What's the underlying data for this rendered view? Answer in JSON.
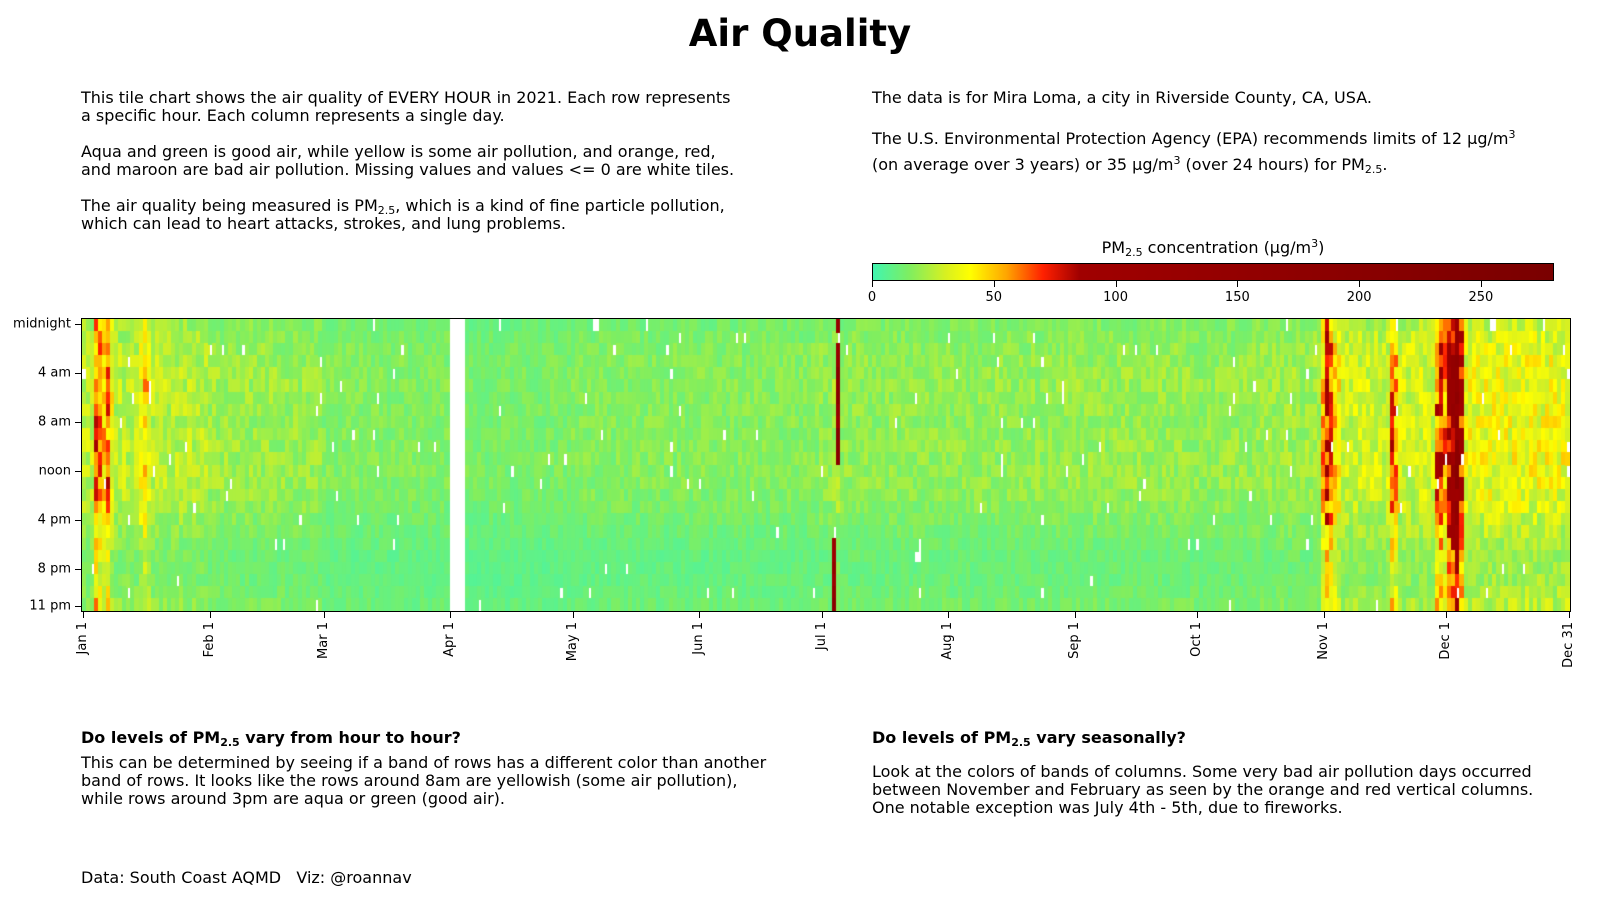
{
  "title": "Air Quality",
  "intro": {
    "p1_line1": "This tile chart shows the air quality of EVERY HOUR in 2021.  Each row represents",
    "p1_line2": "a specific hour.  Each column represents a single day.",
    "p2_line1": "Aqua and green is good air, while yellow is some air pollution, and orange, red,",
    "p2_line2": "and maroon are bad air pollution.  Missing values and values <= 0 are white tiles.",
    "p3_line1_pre": "The air quality being measured is PM",
    "p3_line1_sub": "2.5",
    "p3_line1_post": ", which is a kind of fine particle pollution,",
    "p3_line2": "which can lead to heart attacks, strokes, and lung problems."
  },
  "location": {
    "text": "The data is for Mira Loma, a city in Riverside County, CA, USA."
  },
  "epa": {
    "line1_pre": "The U.S. Environmental Protection Agency (EPA) recommends limits of 12 μg/m",
    "line1_sup": "3",
    "line2_a": "(on average over 3 years) or 35 μg/m",
    "line2_sup": "3",
    "line2_b": " (over 24 hours) for PM",
    "line2_sub": "2.5",
    "line2_c": "."
  },
  "colorbar": {
    "label_pre": "PM",
    "label_sub": "2.5",
    "label_mid": " concentration (μg/m",
    "label_sup": "3",
    "label_post": ")",
    "range": [
      0,
      280
    ],
    "ticks": [
      {
        "value": 0,
        "label": "0"
      },
      {
        "value": 50,
        "label": "50"
      },
      {
        "value": 100,
        "label": "100"
      },
      {
        "value": 150,
        "label": "150"
      },
      {
        "value": 200,
        "label": "200"
      },
      {
        "value": 250,
        "label": "250"
      }
    ],
    "color_stops": [
      {
        "value": 0,
        "color": "#40f5b0"
      },
      {
        "value": 15,
        "color": "#7fee60"
      },
      {
        "value": 30,
        "color": "#d8f020"
      },
      {
        "value": 40,
        "color": "#ffff00"
      },
      {
        "value": 55,
        "color": "#ffa500"
      },
      {
        "value": 70,
        "color": "#ff2000"
      },
      {
        "value": 85,
        "color": "#a00000"
      },
      {
        "value": 280,
        "color": "#7a0000"
      }
    ]
  },
  "q1": {
    "heading_pre": "Do levels of PM",
    "heading_sub": "2.5",
    "heading_post": " vary from hour to hour?",
    "line1": "This can be determined by seeing if a band of rows has a different color than another",
    "line2": "band of rows.  It looks like the rows around 8am are yellowish (some air pollution),",
    "line3": "while rows around 3pm are aqua or green (good air)."
  },
  "q2": {
    "heading_pre": "Do levels of PM",
    "heading_sub": "2.5",
    "heading_post": " vary seasonally?",
    "line1": "Look at the colors of bands of columns.  Some very bad air pollution days occurred",
    "line2": "between November and February as seen by the orange and red vertical columns.",
    "line3": "One notable exception was July 4th - 5th, due to fireworks."
  },
  "credit": "Data: South Coast AQMD   Viz: @roannav",
  "chart_data": {
    "type": "heatmap",
    "x": "day of year 2021 (Jan 1 – Dec 31)",
    "y": "hour of day (midnight – 11 pm)",
    "hour_ticks": [
      {
        "hour": 0,
        "label": "midnight"
      },
      {
        "hour": 4,
        "label": "4 am"
      },
      {
        "hour": 8,
        "label": "8 am"
      },
      {
        "hour": 12,
        "label": "noon"
      },
      {
        "hour": 16,
        "label": "4 pm"
      },
      {
        "hour": 20,
        "label": "8 pm"
      },
      {
        "hour": 23,
        "label": "11 pm"
      }
    ],
    "date_ticks": [
      {
        "day": 1,
        "label": "Jan 1"
      },
      {
        "day": 32,
        "label": "Feb 1"
      },
      {
        "day": 60,
        "label": "Mar 1"
      },
      {
        "day": 91,
        "label": "Apr 1"
      },
      {
        "day": 121,
        "label": "May 1"
      },
      {
        "day": 152,
        "label": "Jun 1"
      },
      {
        "day": 182,
        "label": "Jul 1"
      },
      {
        "day": 213,
        "label": "Aug 1"
      },
      {
        "day": 244,
        "label": "Sep 1"
      },
      {
        "day": 274,
        "label": "Oct 1"
      },
      {
        "day": 305,
        "label": "Nov 1"
      },
      {
        "day": 335,
        "label": "Dec 1"
      },
      {
        "day": 365,
        "label": "Dec 31"
      }
    ],
    "approx_daily_mean_pm25": {
      "Jan": 22,
      "Feb": 17,
      "Mar": 13,
      "Apr": 11,
      "May": 13,
      "Jun": 13,
      "Jul": 15,
      "Aug": 15,
      "Sep": 16,
      "Oct": 15,
      "Nov": 24,
      "Dec": 30
    },
    "notable_events": [
      {
        "dates": "Jan 4 – Jan 8",
        "peak_pm25": 75
      },
      {
        "dates": "Jan 15 – Jan 17",
        "peak_pm25": 45
      },
      {
        "dates": "Apr 1 – Apr 4",
        "missing": true
      },
      {
        "dates": "Jul 4 – Jul 5",
        "peak_pm25": 250
      },
      {
        "dates": "Nov 1 – Nov 5",
        "peak_pm25": 90
      },
      {
        "dates": "Nov 19 – Nov 20",
        "peak_pm25": 75
      },
      {
        "dates": "Nov 29 – Nov 30",
        "peak_pm25": 80
      },
      {
        "dates": "Dec 2 – Dec 5",
        "peak_pm25": 150
      }
    ]
  }
}
